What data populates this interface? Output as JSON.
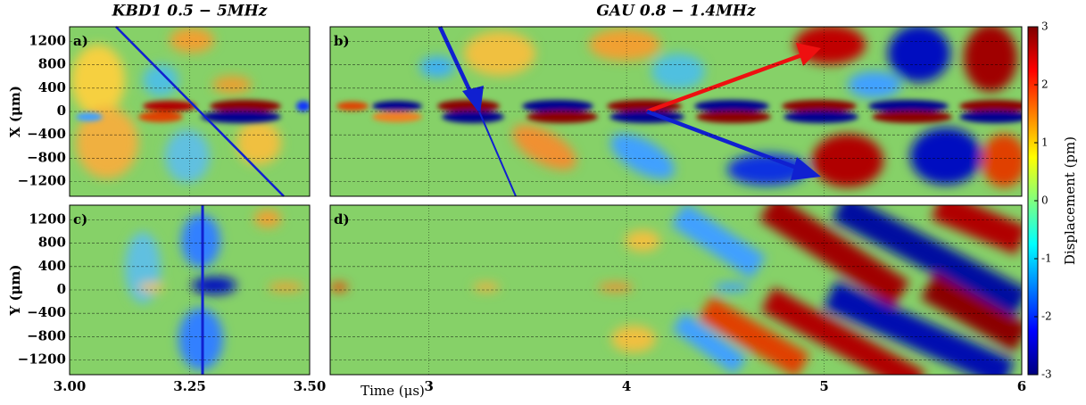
{
  "chart_data": [
    {
      "type": "heatmap",
      "label": "a)",
      "title": "KBD1   0.5 − 5MHz",
      "ylabel": "X (μm)",
      "xlim": [
        3,
        3.5
      ],
      "xticks": [
        3,
        3.25,
        3.5
      ],
      "ylim": [
        -1450,
        1450
      ],
      "yticks": [
        1200,
        800,
        400,
        0,
        {
          "value": -400,
          "label": "−400"
        },
        {
          "value": -800,
          "label": "−800"
        },
        {
          "value": -1200,
          "label": "−1200"
        }
      ],
      "show_ticklabels": {
        "x": false,
        "y": true
      },
      "grid": true
    },
    {
      "type": "heatmap",
      "label": "b)",
      "title": "GAU   0.8 − 1.4MHz",
      "xlim": [
        2.5,
        6
      ],
      "xticks": [
        3,
        4,
        5,
        6
      ],
      "ylim": [
        -1450,
        1450
      ],
      "yticks": [
        1200,
        800,
        400,
        0,
        -400,
        -800,
        -1200
      ],
      "show_ticklabels": {
        "x": false,
        "y": false
      },
      "grid": true
    },
    {
      "type": "heatmap",
      "label": "c)",
      "ylabel": "Y (μm)",
      "xlim": [
        3,
        3.5
      ],
      "xticks": [
        {
          "value": 3,
          "label": "3.00"
        },
        3.25,
        {
          "value": 3.5,
          "label": "3.50"
        }
      ],
      "ylim": [
        -1450,
        1450
      ],
      "yticks": [
        1200,
        800,
        400,
        0,
        {
          "value": -400,
          "label": "−400"
        },
        {
          "value": -800,
          "label": "−800"
        },
        {
          "value": -1200,
          "label": "−1200"
        }
      ],
      "show_ticklabels": {
        "x": true,
        "y": true
      },
      "grid": true
    },
    {
      "type": "heatmap",
      "label": "d)",
      "xlabel": "Time (μs)",
      "xlim": [
        2.5,
        6
      ],
      "xticks": [
        3,
        4,
        5,
        6
      ],
      "ylim": [
        -1450,
        1450
      ],
      "yticks": [
        1200,
        800,
        400,
        0,
        -400,
        -800,
        -1200
      ],
      "show_ticklabels": {
        "x": true,
        "y": false
      },
      "grid": true
    },
    {
      "type": "colorbar",
      "label": "Displacement (pm)",
      "lim": [
        -3,
        3
      ],
      "ticks": [
        3,
        2,
        1,
        0,
        -1,
        -2,
        -3
      ]
    }
  ]
}
